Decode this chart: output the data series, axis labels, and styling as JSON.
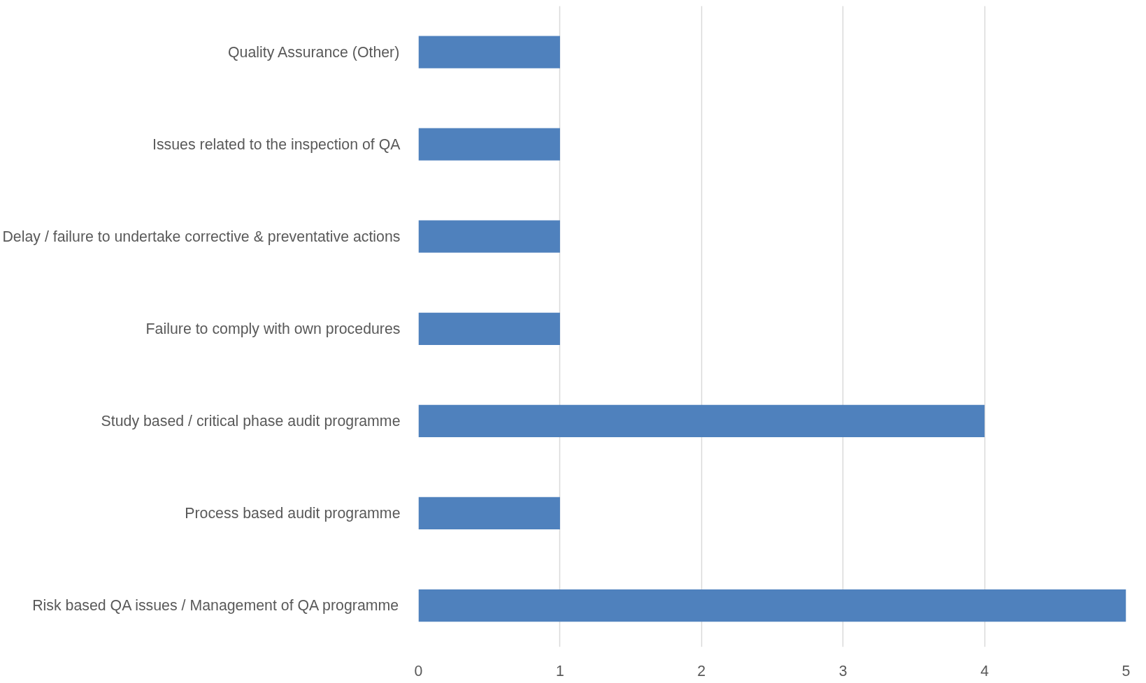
{
  "chart_data": {
    "type": "bar",
    "orientation": "horizontal",
    "categories": [
      "Quality Assurance (Other)",
      "Issues related to the inspection of QA",
      "Delay / failure to undertake corrective & preventative actions",
      "Failure to comply with own procedures",
      "Study based / critical phase audit programme",
      "Process based audit programme",
      "Risk based QA issues / Management of QA programme"
    ],
    "values": [
      1,
      1,
      1,
      1,
      4,
      1,
      5
    ],
    "color": "#4f81bd",
    "xlim": [
      0,
      5
    ],
    "xticks": [
      0,
      1,
      2,
      3,
      4,
      5
    ],
    "grid": "x"
  }
}
